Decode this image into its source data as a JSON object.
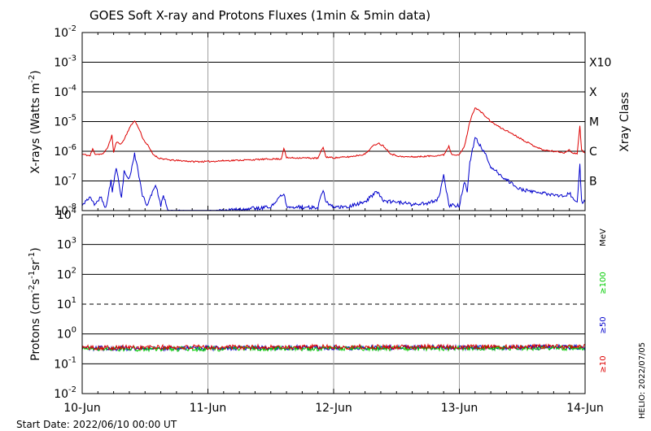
{
  "title": "GOES Soft X-ray and Protons Fluxes   (1min & 5min data)",
  "footer": {
    "start_date": "Start Date: 2022/06/10 00:00 UT",
    "credit": "HELIO: 2022/07/05"
  },
  "colors": {
    "xray_long": "#dd0000",
    "xray_short": "#0000cc",
    "proton_10": "#dd0000",
    "proton_50": "#0000cc",
    "proton_100": "#00cc00",
    "grid_day": "#a0a0a0"
  },
  "chart_data": [
    {
      "type": "line",
      "panel": "xray",
      "scale": "log",
      "ylabel_base": "X-rays (Watts m",
      "ylabel_sup": "-2",
      "ylabel_end": ")",
      "ylim": [
        1e-08,
        0.01
      ],
      "xlim": [
        "2022-06-10T00:00",
        "2022-06-14T00:00"
      ],
      "y_ticks": [
        {
          "base": "10",
          "exp": "-2",
          "value": 0.01
        },
        {
          "base": "10",
          "exp": "-3",
          "value": 0.001
        },
        {
          "base": "10",
          "exp": "-4",
          "value": 0.0001
        },
        {
          "base": "10",
          "exp": "-5",
          "value": 1e-05
        },
        {
          "base": "10",
          "exp": "-6",
          "value": 1e-06
        },
        {
          "base": "10",
          "exp": "-7",
          "value": 1e-07
        },
        {
          "base": "10",
          "exp": "-8",
          "value": 1e-08
        }
      ],
      "right_axis_title": "Xray Class",
      "class_labels": [
        {
          "label": "X10",
          "value": 0.001
        },
        {
          "label": "X",
          "value": 0.0001
        },
        {
          "label": "M",
          "value": 1e-05
        },
        {
          "label": "C",
          "value": 1e-06
        },
        {
          "label": "B",
          "value": 1e-07
        }
      ],
      "series": [
        {
          "x": [
            "2022-06-10T00:00",
            "2022-06-10T01:30",
            "2022-06-10T02:00",
            "2022-06-10T02:30",
            "2022-06-10T04:00",
            "2022-06-10T05:00",
            "2022-06-10T05:40",
            "2022-06-10T06:00",
            "2022-06-10T06:30",
            "2022-06-10T07:30",
            "2022-06-10T08:00",
            "2022-06-10T09:00",
            "2022-06-10T10:00",
            "2022-06-10T11:00",
            "2022-06-10T11:40",
            "2022-06-10T12:30",
            "2022-06-10T13:30",
            "2022-06-10T14:30",
            "2022-06-10T15:30",
            "2022-06-10T17:00",
            "2022-06-10T19:00",
            "2022-06-10T21:00",
            "2022-06-11T00:00",
            "2022-06-11T03:00",
            "2022-06-11T06:00",
            "2022-06-11T09:00",
            "2022-06-11T12:00",
            "2022-06-11T14:00",
            "2022-06-11T14:30",
            "2022-06-11T15:00",
            "2022-06-11T18:00",
            "2022-06-11T21:00",
            "2022-06-11T22:00",
            "2022-06-11T22:30",
            "2022-06-12T00:00",
            "2022-06-12T03:00",
            "2022-06-12T06:00",
            "2022-06-12T07:30",
            "2022-06-12T08:30",
            "2022-06-12T09:30",
            "2022-06-12T11:00",
            "2022-06-12T13:00",
            "2022-06-12T16:00",
            "2022-06-12T19:00",
            "2022-06-12T21:00",
            "2022-06-12T22:00",
            "2022-06-12T22:30",
            "2022-06-13T00:00",
            "2022-06-13T01:00",
            "2022-06-13T02:00",
            "2022-06-13T03:00",
            "2022-06-13T04:00",
            "2022-06-13T05:00",
            "2022-06-13T06:00",
            "2022-06-13T08:00",
            "2022-06-13T10:00",
            "2022-06-13T12:00",
            "2022-06-13T14:00",
            "2022-06-13T16:00",
            "2022-06-13T18:00",
            "2022-06-13T20:00",
            "2022-06-13T21:00",
            "2022-06-13T21:30",
            "2022-06-13T22:00",
            "2022-06-13T22:30",
            "2022-06-13T23:00",
            "2022-06-13T23:20",
            "2022-06-14T00:00"
          ],
          "y": [
            8e-07,
            7e-07,
            1.2e-06,
            8e-07,
            8e-07,
            1.5e-06,
            3.5e-06,
            9e-07,
            2e-06,
            1.8e-06,
            2.5e-06,
            6e-06,
            1.1e-05,
            5e-06,
            2.5e-06,
            1.6e-06,
            8e-07,
            6e-07,
            5.5e-07,
            5e-07,
            4.8e-07,
            4.5e-07,
            4.5e-07,
            4.8e-07,
            5e-07,
            5.2e-07,
            5.5e-07,
            5.5e-07,
            1.3e-06,
            6e-07,
            6e-07,
            5.8e-07,
            1.4e-06,
            6.5e-07,
            6e-07,
            6.5e-07,
            8e-07,
            1.5e-06,
            1.9e-06,
            1.5e-06,
            8e-07,
            6.5e-07,
            6.5e-07,
            7e-07,
            7.5e-07,
            1.5e-06,
            8e-07,
            7.5e-07,
            1.5e-06,
            1e-05,
            3e-05,
            2.2e-05,
            1.5e-05,
            1e-05,
            6e-06,
            4e-06,
            2.5e-06,
            1.6e-06,
            1.1e-06,
            1e-06,
            9e-07,
            1.1e-06,
            9e-07,
            8.5e-07,
            8.5e-07,
            7e-06,
            1.1e-06,
            8.5e-07
          ]
        },
        {
          "x": [
            "2022-06-10T00:00",
            "2022-06-10T01:30",
            "2022-06-10T02:30",
            "2022-06-10T03:30",
            "2022-06-10T04:30",
            "2022-06-10T05:30",
            "2022-06-10T05:45",
            "2022-06-10T06:30",
            "2022-06-10T07:30",
            "2022-06-10T08:00",
            "2022-06-10T09:00",
            "2022-06-10T10:00",
            "2022-06-10T10:30",
            "2022-06-10T11:30",
            "2022-06-10T12:30",
            "2022-06-10T14:00",
            "2022-06-10T15:00",
            "2022-06-10T15:30",
            "2022-06-10T16:30",
            "2022-06-10T19:00",
            "2022-06-10T22:00",
            "2022-06-11T00:00",
            "2022-06-11T03:00",
            "2022-06-11T06:00",
            "2022-06-11T09:00",
            "2022-06-11T12:00",
            "2022-06-11T14:30",
            "2022-06-11T15:00",
            "2022-06-11T18:00",
            "2022-06-11T21:00",
            "2022-06-11T22:00",
            "2022-06-11T22:30",
            "2022-06-12T00:00",
            "2022-06-12T03:00",
            "2022-06-12T06:00",
            "2022-06-12T08:00",
            "2022-06-12T08:30",
            "2022-06-12T09:30",
            "2022-06-12T12:00",
            "2022-06-12T15:00",
            "2022-06-12T18:00",
            "2022-06-12T20:00",
            "2022-06-12T21:00",
            "2022-06-12T22:00",
            "2022-06-13T00:00",
            "2022-06-13T01:00",
            "2022-06-13T01:30",
            "2022-06-13T02:00",
            "2022-06-13T03:00",
            "2022-06-13T04:00",
            "2022-06-13T05:00",
            "2022-06-13T06:00",
            "2022-06-13T08:00",
            "2022-06-13T10:00",
            "2022-06-13T12:00",
            "2022-06-13T15:00",
            "2022-06-13T18:00",
            "2022-06-13T20:00",
            "2022-06-13T21:00",
            "2022-06-13T22:00",
            "2022-06-13T22:30",
            "2022-06-13T23:00",
            "2022-06-13T23:20",
            "2022-06-14T00:00"
          ],
          "y": [
            1.5e-08,
            3e-08,
            1.5e-08,
            3e-08,
            1.2e-08,
            1e-07,
            4e-08,
            3e-07,
            2.5e-08,
            2e-07,
            1.2e-07,
            8e-07,
            3e-07,
            3e-08,
            1.5e-08,
            8e-08,
            1.5e-08,
            3e-08,
            1e-08,
            9e-09,
            9e-09,
            9e-09,
            1e-08,
            1.1e-08,
            1.2e-08,
            1.3e-08,
            4e-08,
            1.4e-08,
            1.3e-08,
            1.3e-08,
            5e-08,
            2e-08,
            1.3e-08,
            1.4e-08,
            2e-08,
            4e-08,
            4e-08,
            2e-08,
            2e-08,
            1.6e-08,
            1.8e-08,
            2.5e-08,
            1.5e-07,
            1.5e-08,
            1.5e-08,
            1e-07,
            4e-08,
            4e-07,
            3e-06,
            1.5e-06,
            8e-07,
            3e-07,
            1.5e-07,
            8e-08,
            5e-08,
            4e-08,
            3.5e-08,
            3e-08,
            4e-08,
            2e-08,
            2e-08,
            4e-07,
            2e-08,
            2e-08
          ]
        }
      ]
    },
    {
      "type": "line",
      "panel": "protons",
      "scale": "log",
      "ylabel_base": "Protons (cm",
      "ylabel_s1": "-2",
      "ylabel_mid": "s",
      "ylabel_s2": "-1",
      "ylabel_mid2": "sr",
      "ylabel_s3": "-1",
      "ylabel_end": ")",
      "ylim": [
        0.01,
        10000
      ],
      "xlim": [
        "2022-06-10T00:00",
        "2022-06-14T00:00"
      ],
      "y_ticks": [
        {
          "base": "10",
          "exp": "4",
          "value": 10000
        },
        {
          "base": "10",
          "exp": "3",
          "value": 1000
        },
        {
          "base": "10",
          "exp": "2",
          "value": 100
        },
        {
          "base": "10",
          "exp": "1",
          "value": 10
        },
        {
          "base": "10",
          "exp": "0",
          "value": 1
        },
        {
          "base": "10",
          "exp": "-1",
          "value": 0.1
        },
        {
          "base": "10",
          "exp": "-2",
          "value": 0.01
        }
      ],
      "threshold_dashed": 10,
      "right_unit": "MeV",
      "energy_labels": [
        {
          "label": "≥100",
          "color": "#00cc00"
        },
        {
          "label": "≥50",
          "color": "#0000cc"
        },
        {
          "label": "≥10",
          "color": "#dd0000"
        }
      ],
      "series": [
        {
          "x": [
            "2022-06-10T00:00",
            "2022-06-14T00:00"
          ],
          "y": [
            0.35,
            0.38
          ]
        },
        {
          "x": [
            "2022-06-10T00:00",
            "2022-06-14T00:00"
          ],
          "y": [
            0.33,
            0.36
          ]
        },
        {
          "x": [
            "2022-06-10T00:00",
            "2022-06-14T00:00"
          ],
          "y": [
            0.31,
            0.34
          ]
        }
      ]
    }
  ],
  "x_tick_labels": [
    "10-Jun",
    "11-Jun",
    "12-Jun",
    "13-Jun",
    "14-Jun"
  ]
}
